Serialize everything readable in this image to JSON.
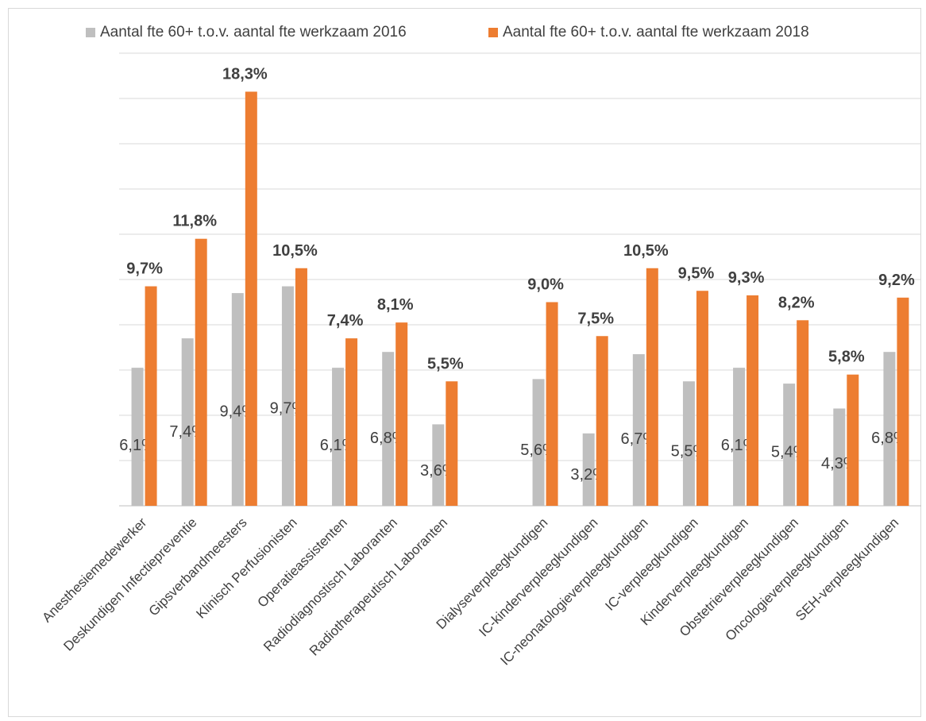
{
  "chart_data": {
    "type": "bar",
    "categories": [
      "Anesthesiemedewerker",
      "Deskundigen Infectiepreventie",
      "Gipsverbandmeesters",
      "Klinisch Perfusionisten",
      "Operatieassistenten",
      "Radiodiagnostisch Laboranten",
      "Radiotherapeutisch Laboranten",
      "",
      "Dialyseverpleegkundigen",
      "IC-kinderverpleegkundigen",
      "IC-neonatologieverpleegkundigen",
      "IC-verpleegkundigen",
      "Kinderverpleegkundigen",
      "Obstetrieverpleegkundigen",
      "Oncologieverpleegkundigen",
      "SEH-verpleegkundigen"
    ],
    "series": [
      {
        "name": "Aantal fte 60+ t.o.v. aantal fte werkzaam 2016",
        "color": "#bfbfbf",
        "values": [
          6.1,
          7.4,
          9.4,
          9.7,
          6.1,
          6.8,
          3.6,
          null,
          5.6,
          3.2,
          6.7,
          5.5,
          6.1,
          5.4,
          4.3,
          6.8
        ],
        "labels": [
          "6,1%",
          "7,4%",
          "9,4%",
          "9,7%",
          "6,1%",
          "6,8%",
          "3,6%",
          "",
          "5,6%",
          "3,2%",
          "6,7%",
          "5,5%",
          "6,1%",
          "5,4%",
          "4,3%",
          "6,8%"
        ]
      },
      {
        "name": "Aantal fte 60+ t.o.v. aantal fte werkzaam 2018",
        "color": "#ed7d31",
        "values": [
          9.7,
          11.8,
          18.3,
          10.5,
          7.4,
          8.1,
          5.5,
          null,
          9.0,
          7.5,
          10.5,
          9.5,
          9.3,
          8.2,
          5.8,
          9.2
        ],
        "labels": [
          "9,7%",
          "11,8%",
          "18,3%",
          "10,5%",
          "7,4%",
          "8,1%",
          "5,5%",
          "",
          "9,0%",
          "7,5%",
          "10,5%",
          "9,5%",
          "9,3%",
          "8,2%",
          "5,8%",
          "9,2%"
        ]
      }
    ],
    "ylim": [
      0,
      20
    ],
    "gridlines": true,
    "legend_position": "top"
  }
}
